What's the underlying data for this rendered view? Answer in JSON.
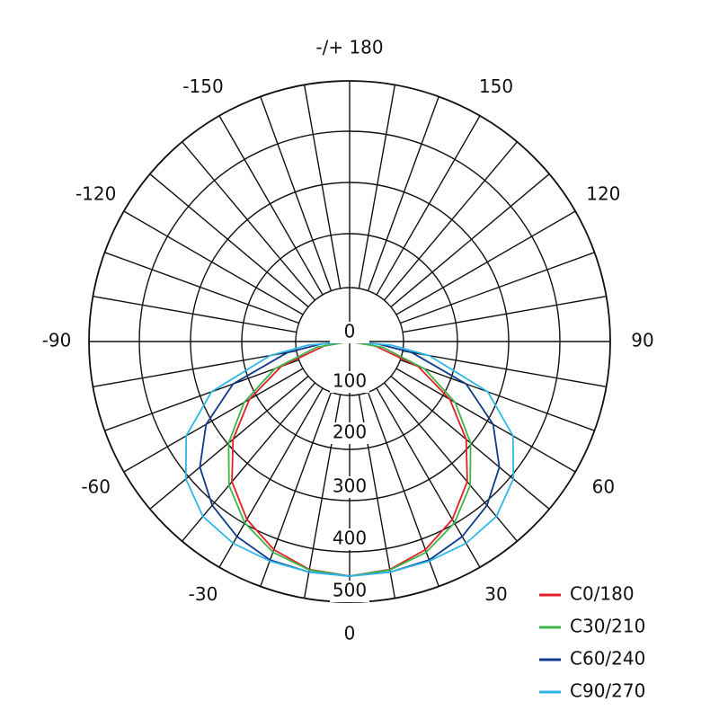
{
  "chart_data": {
    "type": "polar",
    "subtype": "luminous-intensity-distribution",
    "angular_axis": {
      "tick_labels": [
        "0",
        "30",
        "60",
        "90",
        "120",
        "150",
        "-/+ 180",
        "-150",
        "-120",
        "-90",
        "-60",
        "-30"
      ],
      "tick_values": [
        0,
        30,
        60,
        90,
        120,
        150,
        180,
        -150,
        -120,
        -90,
        -60,
        -30
      ],
      "grid_step_deg": 10
    },
    "radial_axis": {
      "tick_labels": [
        "0",
        "100",
        "200",
        "300",
        "400",
        "500"
      ],
      "range": [
        0,
        500
      ]
    },
    "grid": true,
    "legend": {
      "placement": "bottom-right"
    },
    "series": [
      {
        "name": "C0/180",
        "color": "#e21f26",
        "angles": [
          0,
          10,
          20,
          30,
          40,
          50,
          60,
          70,
          80,
          90
        ],
        "values": [
          450,
          444,
          425,
          394,
          351,
          292,
          222,
          140,
          50,
          0
        ]
      },
      {
        "name": "C30/210",
        "color": "#3db54a",
        "angles": [
          0,
          10,
          20,
          30,
          40,
          50,
          60,
          70,
          80,
          90
        ],
        "values": [
          450,
          445,
          430,
          402,
          360,
          303,
          234,
          153,
          65,
          0
        ]
      },
      {
        "name": "C60/240",
        "color": "#0d3a8a",
        "angles": [
          0,
          10,
          20,
          30,
          40,
          50,
          60,
          70,
          80,
          85,
          90
        ],
        "values": [
          450,
          449,
          446,
          432,
          410,
          375,
          318,
          238,
          121,
          55,
          0
        ]
      },
      {
        "name": "C90/270",
        "color": "#2fb7e8",
        "angles": [
          0,
          10,
          20,
          30,
          40,
          50,
          60,
          70,
          80,
          85,
          90
        ],
        "values": [
          450,
          449,
          448,
          447,
          438,
          410,
          362,
          282,
          155,
          80,
          0
        ]
      }
    ]
  }
}
